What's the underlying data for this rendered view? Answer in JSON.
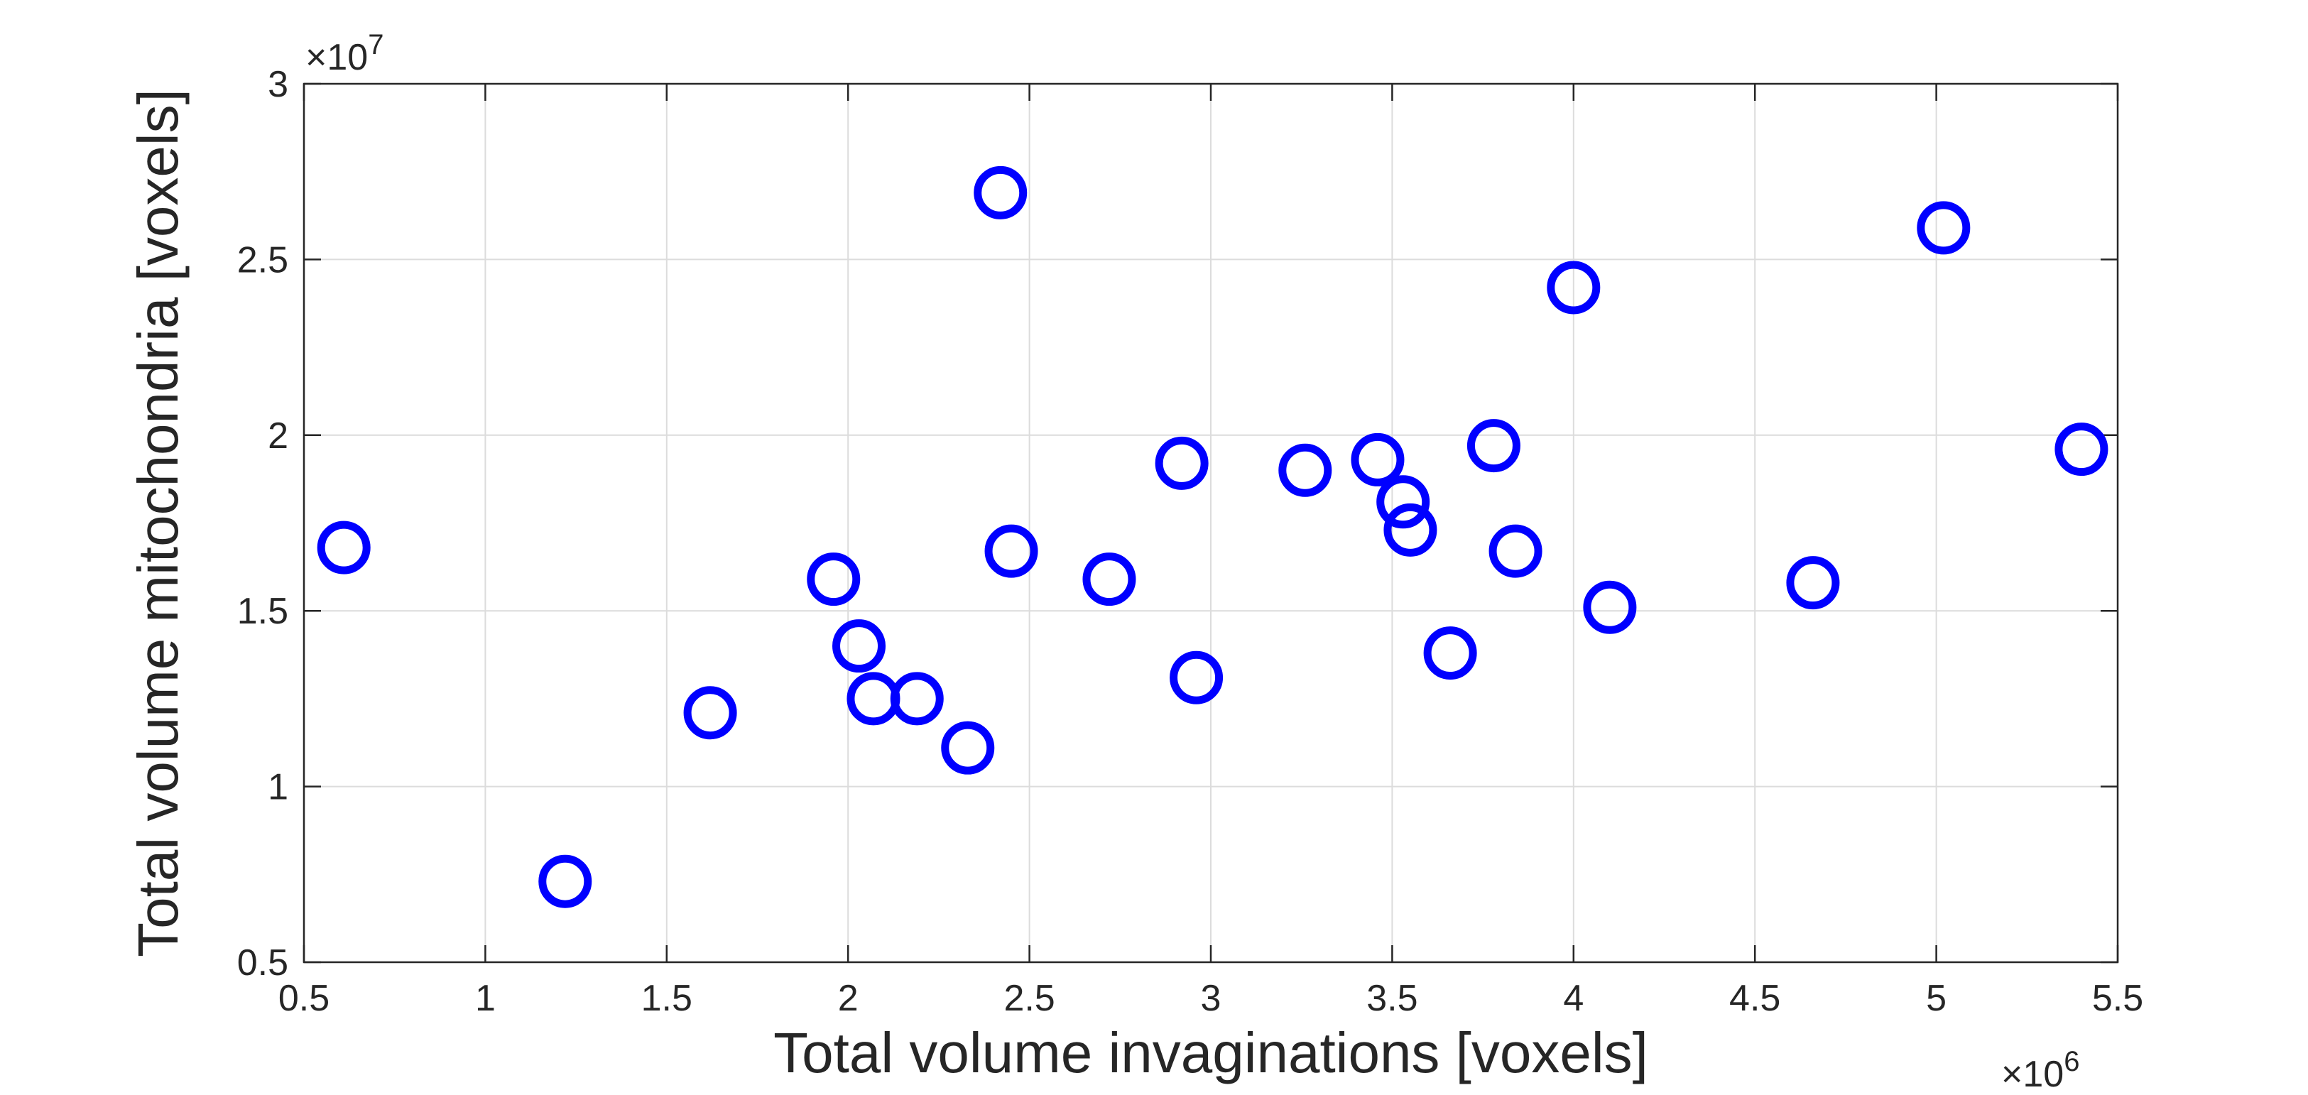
{
  "chart_data": {
    "type": "scatter",
    "title": "",
    "xlabel": "Total volume invaginations [voxels]",
    "ylabel": "Total volume mitochondria [voxels]",
    "x_exponent_label": {
      "base": "×10",
      "exp": "6"
    },
    "y_exponent_label": {
      "base": "×10",
      "exp": "7"
    },
    "xlim": [
      0.5,
      5.5
    ],
    "ylim": [
      0.5,
      3
    ],
    "x_ticks": [
      "0.5",
      "1",
      "1.5",
      "2",
      "2.5",
      "3",
      "3.5",
      "4",
      "4.5",
      "5",
      "5.5"
    ],
    "y_ticks": [
      "0.5",
      "1",
      "1.5",
      "2",
      "2.5",
      "3"
    ],
    "grid": true,
    "marker": "circle-open",
    "marker_color": "#0000FF",
    "series": [
      {
        "points": [
          {
            "x": 0.61,
            "y": 1.68
          },
          {
            "x": 1.22,
            "y": 0.73
          },
          {
            "x": 1.62,
            "y": 1.21
          },
          {
            "x": 1.96,
            "y": 1.59
          },
          {
            "x": 2.03,
            "y": 1.4
          },
          {
            "x": 2.07,
            "y": 1.25
          },
          {
            "x": 2.19,
            "y": 1.25
          },
          {
            "x": 2.33,
            "y": 1.11
          },
          {
            "x": 2.42,
            "y": 2.69
          },
          {
            "x": 2.45,
            "y": 1.67
          },
          {
            "x": 2.72,
            "y": 1.59
          },
          {
            "x": 2.92,
            "y": 1.92
          },
          {
            "x": 2.96,
            "y": 1.31
          },
          {
            "x": 3.26,
            "y": 1.9
          },
          {
            "x": 3.46,
            "y": 1.93
          },
          {
            "x": 3.53,
            "y": 1.81
          },
          {
            "x": 3.55,
            "y": 1.73
          },
          {
            "x": 3.66,
            "y": 1.38
          },
          {
            "x": 3.78,
            "y": 1.97
          },
          {
            "x": 3.84,
            "y": 1.67
          },
          {
            "x": 4.0,
            "y": 2.42
          },
          {
            "x": 4.1,
            "y": 1.51
          },
          {
            "x": 4.66,
            "y": 1.58
          },
          {
            "x": 5.02,
            "y": 2.59
          },
          {
            "x": 5.4,
            "y": 1.96
          }
        ]
      }
    ]
  }
}
